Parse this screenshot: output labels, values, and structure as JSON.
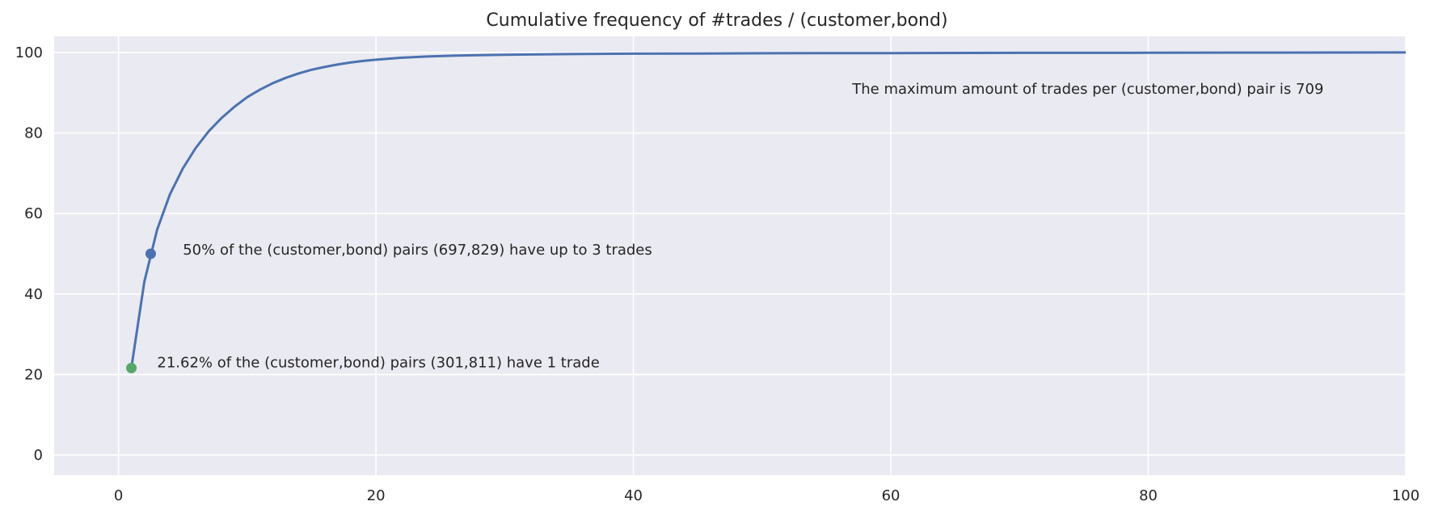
{
  "colors": {
    "plot_bg": "#eaeaf2",
    "grid": "#ffffff",
    "line": "#4c72b0",
    "marker_median": "#4c72b0",
    "marker_first": "#55a868"
  },
  "chart_data": {
    "type": "line",
    "title": "Cumulative frequency of #trades / (customer,bond)",
    "xlabel": "",
    "ylabel": "",
    "xlim": [
      -5,
      100
    ],
    "ylim": [
      -5,
      104
    ],
    "grid": true,
    "xticks": [
      0,
      20,
      40,
      60,
      80,
      100
    ],
    "yticks": [
      0,
      20,
      40,
      60,
      80,
      100
    ],
    "series": [
      {
        "x": [
          1,
          2,
          3,
          4,
          5,
          6,
          7,
          8,
          9,
          10,
          11,
          12,
          13,
          14,
          15,
          16,
          17,
          18,
          19,
          20,
          22,
          24,
          26,
          28,
          30,
          35,
          40,
          45,
          50,
          60,
          70,
          80,
          90,
          100
        ],
        "y": [
          21.62,
          43,
          56,
          64.8,
          71.2,
          76.3,
          80.4,
          83.7,
          86.5,
          88.9,
          90.8,
          92.4,
          93.7,
          94.8,
          95.7,
          96.4,
          97.0,
          97.5,
          97.9,
          98.2,
          98.7,
          99.0,
          99.2,
          99.35,
          99.45,
          99.6,
          99.7,
          99.75,
          99.8,
          99.85,
          99.9,
          99.93,
          99.96,
          100
        ]
      }
    ],
    "points": [
      {
        "id": "first",
        "x": 1,
        "y": 21.62
      },
      {
        "id": "median",
        "x": 2.5,
        "y": 50
      }
    ],
    "annotations": [
      {
        "id": "max",
        "x": 57,
        "y": 91,
        "text": "The maximum amount of trades per (customer,bond) pair is 709"
      },
      {
        "id": "median",
        "x": 5,
        "y": 51,
        "text": "50% of the (customer,bond) pairs (697,829) have up to 3 trades"
      },
      {
        "id": "first",
        "x": 3,
        "y": 23,
        "text": "21.62% of the (customer,bond) pairs (301,811) have 1 trade"
      }
    ]
  }
}
